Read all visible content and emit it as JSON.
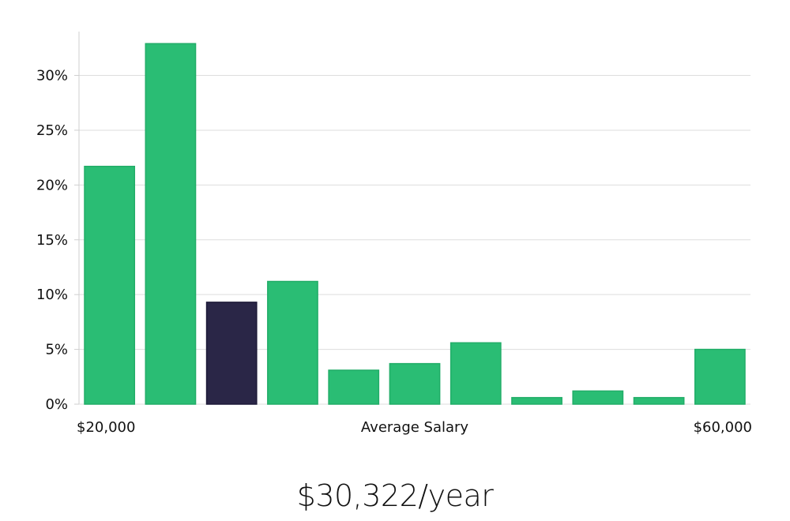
{
  "chart_data": {
    "type": "bar",
    "categories": [
      "1",
      "2",
      "3",
      "4",
      "5",
      "6",
      "7",
      "8",
      "9",
      "10",
      "11"
    ],
    "values": [
      21.7,
      32.9,
      9.3,
      11.2,
      3.1,
      3.7,
      5.6,
      0.6,
      1.2,
      0.6,
      5.0
    ],
    "highlight_index": 2,
    "xlabel": "Average Salary",
    "x_min_label": "$20,000",
    "x_max_label": "$60,000",
    "ylim": [
      0,
      34
    ],
    "yticks": [
      0,
      5,
      10,
      15,
      20,
      25,
      30
    ],
    "ytick_labels": [
      "0%",
      "5%",
      "10%",
      "15%",
      "20%",
      "25%",
      "30%"
    ],
    "grid": true,
    "colors": {
      "bar": "#2abd74",
      "bar_edge": "#22ad68",
      "highlight": "#2a2647",
      "grid": "#dddddd",
      "axis": "#cfcfcf"
    }
  },
  "headline": {
    "salary": "$30,322/year"
  }
}
